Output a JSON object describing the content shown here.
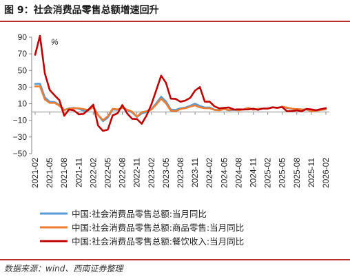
{
  "figure": {
    "title": "图 9：社会消费品零售总额增速回升",
    "source": "数据来源：wind、西南证券整理"
  },
  "chart_data": {
    "type": "line",
    "unit_label": "%",
    "ylim": [
      -50,
      90
    ],
    "yticks": [
      -50,
      -30,
      -10,
      10,
      30,
      50,
      70,
      90
    ],
    "ytick_labels": [
      "−50",
      "−30",
      "−10",
      "10",
      "30",
      "50",
      "70",
      "90"
    ],
    "x": [
      "2021-02",
      "2021-03",
      "2021-04",
      "2021-05",
      "2021-06",
      "2021-07",
      "2021-08",
      "2021-09",
      "2021-10",
      "2021-11",
      "2021-12",
      "2022-01",
      "2022-02",
      "2022-03",
      "2022-04",
      "2022-05",
      "2022-06",
      "2022-07",
      "2022-08",
      "2022-09",
      "2022-10",
      "2022-11",
      "2022-12",
      "2023-01",
      "2023-02",
      "2023-03",
      "2023-04",
      "2023-05",
      "2023-06",
      "2023-07",
      "2023-08",
      "2023-09",
      "2023-10",
      "2023-11",
      "2023-12",
      "2024-01",
      "2024-02",
      "2024-03",
      "2024-04",
      "2024-05",
      "2024-06",
      "2024-07",
      "2024-08",
      "2024-09",
      "2024-10",
      "2024-11",
      "2024-12",
      "2025-01",
      "2025-02",
      "2025-03",
      "2025-04",
      "2025-05",
      "2025-06",
      "2025-07",
      "2025-08",
      "2025-09",
      "2025-10",
      "2025-11",
      "2025-12",
      "2026-01",
      "2026-02"
    ],
    "xtick_labels": [
      "2021-02",
      "2021-05",
      "2021-08",
      "2021-11",
      "2022-02",
      "2022-05",
      "2022-08",
      "2022-11",
      "2023-02",
      "2023-05",
      "2023-08",
      "2023-11",
      "2024-02",
      "2024-05",
      "2024-08",
      "2024-11",
      "2025-02",
      "2025-05",
      "2025-08",
      "2025-11",
      "2026-02"
    ],
    "series": [
      {
        "name": "中国:社会消费品零售总额:当月同比",
        "color": "#5b9bd5",
        "values": [
          33.8,
          34.2,
          17.7,
          12.4,
          12.1,
          8.5,
          2.5,
          4.4,
          4.9,
          3.9,
          1.7,
          2.0,
          6.7,
          -3.5,
          -11.1,
          -6.7,
          3.1,
          2.7,
          5.4,
          2.5,
          -0.5,
          -5.9,
          -1.8,
          0.0,
          3.5,
          10.6,
          18.4,
          12.7,
          3.1,
          2.5,
          4.6,
          5.5,
          7.6,
          10.1,
          7.4,
          5.5,
          5.5,
          3.1,
          2.3,
          3.7,
          2.0,
          2.7,
          2.1,
          3.2,
          4.8,
          3.0,
          3.7,
          4.0,
          4.0,
          5.9,
          5.1,
          6.4,
          4.8,
          3.7,
          3.4,
          3.0,
          2.9,
          1.3,
          2.0,
          2.8,
          3.0
        ]
      },
      {
        "name": "中国:社会消费品零售总额:商品零售:当月同比",
        "color": "#ed7d31",
        "values": [
          30.9,
          30.9,
          15.1,
          10.9,
          11.1,
          7.6,
          2.3,
          3.9,
          4.6,
          4.6,
          3.6,
          2.3,
          6.0,
          -3.5,
          -9.7,
          -5.0,
          3.9,
          3.2,
          5.1,
          2.8,
          0.5,
          -5.6,
          -0.1,
          1.0,
          2.9,
          9.1,
          15.9,
          10.5,
          1.7,
          1.0,
          3.7,
          4.6,
          6.5,
          8.0,
          5.6,
          4.6,
          4.6,
          2.7,
          2.0,
          3.6,
          2.5,
          3.2,
          2.1,
          3.3,
          5.0,
          2.8,
          3.9,
          4.0,
          4.0,
          5.7,
          5.1,
          6.5,
          5.3,
          4.0,
          3.6,
          3.3,
          3.2,
          1.0,
          1.7,
          2.5,
          3.5
        ]
      },
      {
        "name": "中国:社会消费品零售总额:餐饮收入:当月同比",
        "color": "#c00000",
        "values": [
          68.9,
          91.6,
          46.4,
          26.6,
          20.2,
          14.3,
          -4.5,
          3.1,
          2.0,
          -2.7,
          -2.2,
          3.0,
          8.9,
          -16.4,
          -22.7,
          -21.1,
          -4.0,
          -1.5,
          8.4,
          -1.7,
          -8.1,
          -8.4,
          -14.1,
          -4.0,
          9.2,
          26.3,
          43.8,
          35.1,
          16.1,
          15.8,
          12.4,
          13.8,
          17.1,
          25.8,
          30.0,
          12.5,
          12.5,
          6.9,
          4.4,
          5.0,
          5.4,
          3.0,
          3.3,
          3.1,
          3.2,
          4.0,
          2.7,
          4.3,
          4.3,
          5.6,
          5.2,
          5.9,
          0.9,
          1.1,
          2.1,
          0.9,
          3.8,
          3.2,
          2.2,
          3.5,
          4.7
        ]
      }
    ],
    "grid": false,
    "legend_position": "bottom"
  }
}
